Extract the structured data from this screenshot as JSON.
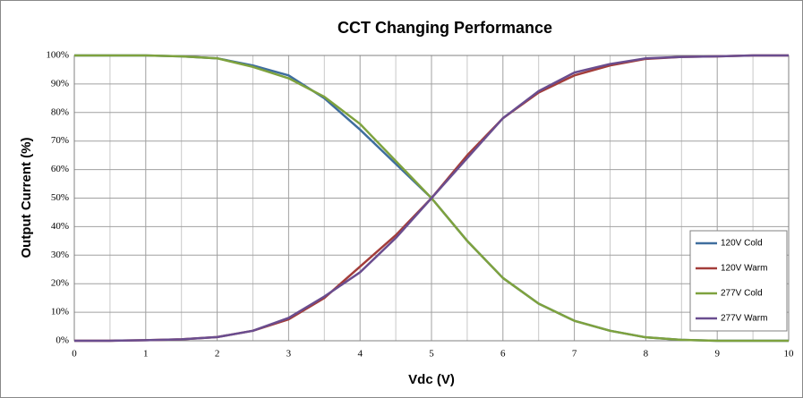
{
  "chart_data": {
    "type": "line",
    "title": "CCT Changing Performance",
    "xlabel": "Vdc (V)",
    "ylabel": "Output Current (%)",
    "x": [
      0,
      0.5,
      1,
      1.5,
      2,
      2.5,
      3,
      3.5,
      4,
      4.5,
      5,
      5.5,
      6,
      6.5,
      7,
      7.5,
      8,
      8.5,
      9,
      9.5,
      10
    ],
    "series": [
      {
        "name": "120V Cold",
        "color": "#3f6e9e",
        "values": [
          100,
          100,
          100,
          99.7,
          99,
          96.5,
          93,
          85,
          74,
          62,
          50,
          35,
          22,
          13,
          7,
          3.5,
          1.2,
          0.3,
          0,
          0,
          0
        ]
      },
      {
        "name": "120V Warm",
        "color": "#a33d3a",
        "values": [
          0,
          0,
          0.2,
          0.5,
          1.3,
          3.5,
          7.5,
          15,
          26,
          37,
          50,
          65,
          78,
          87,
          93,
          96.5,
          98.8,
          99.5,
          99.7,
          100,
          100
        ]
      },
      {
        "name": "277V Cold",
        "color": "#7ea23e",
        "values": [
          100,
          100,
          100,
          99.7,
          99,
          96,
          92,
          85.5,
          76,
          63,
          50,
          35,
          22,
          13,
          7,
          3.5,
          1.2,
          0.3,
          0,
          0,
          0
        ]
      },
      {
        "name": "277V Warm",
        "color": "#6a4d8f",
        "values": [
          0,
          0,
          0.2,
          0.5,
          1.3,
          3.5,
          8,
          15.5,
          24,
          36,
          50,
          64,
          78,
          87.5,
          94,
          97,
          99,
          99.5,
          99.7,
          100,
          100
        ]
      }
    ],
    "xlim": [
      0,
      10
    ],
    "xticks": [
      0,
      1,
      2,
      3,
      4,
      5,
      6,
      7,
      8,
      9,
      10
    ],
    "ylim": [
      0,
      100
    ],
    "yticks": [
      {
        "value": 0,
        "label": "0%"
      },
      {
        "value": 10,
        "label": "10%"
      },
      {
        "value": 20,
        "label": "20%"
      },
      {
        "value": 30,
        "label": "30%"
      },
      {
        "value": 40,
        "label": "40%"
      },
      {
        "value": 50,
        "label": "50%"
      },
      {
        "value": 60,
        "label": "60%"
      },
      {
        "value": 70,
        "label": "70%"
      },
      {
        "value": 80,
        "label": "80%"
      },
      {
        "value": 90,
        "label": "90%"
      },
      {
        "value": 100,
        "label": "100%"
      }
    ],
    "grid": true,
    "legend": "lower right"
  }
}
